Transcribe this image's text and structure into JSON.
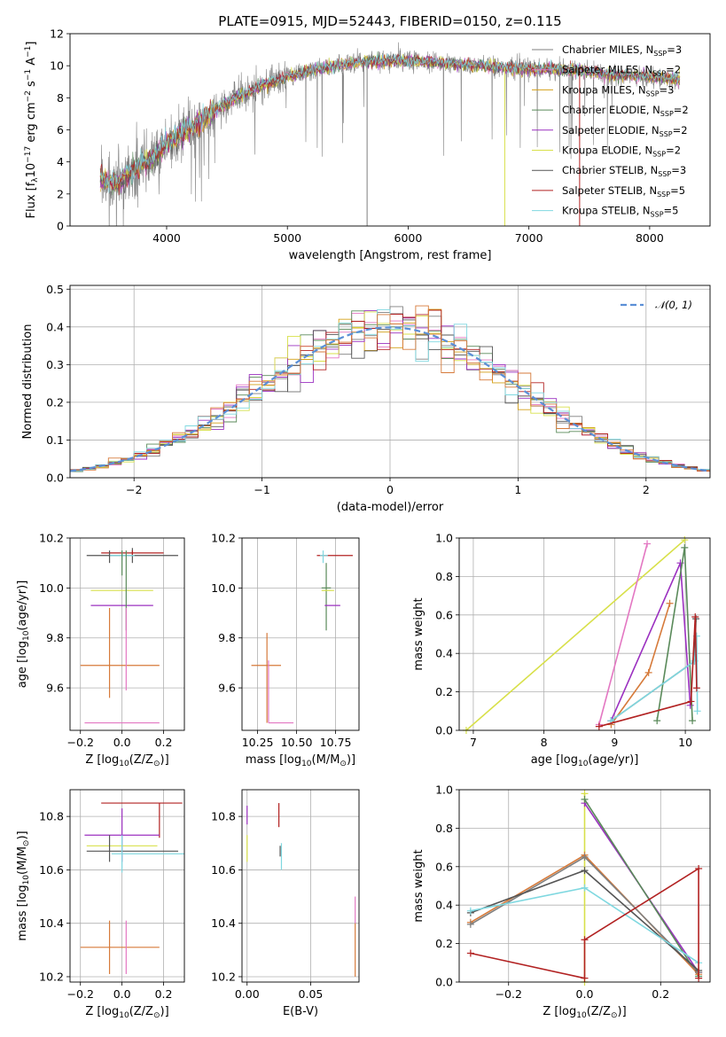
{
  "figure": {
    "title": "PLATE=0915, MJD=52443, FIBERID=0150, z=0.115"
  },
  "colors": {
    "data_spectrum": "#7f7f7f",
    "gaussian": "#5b8fd6",
    "grid": "#b0b0b0",
    "series": [
      "#7f7f7f",
      "#e377c2",
      "#d4a017",
      "#5a8a5a",
      "#9b30c0",
      "#d8e04a",
      "#555555",
      "#b22222",
      "#7fd8e0"
    ]
  },
  "legend_spectrum": [
    {
      "label": "Chabrier MILES, N$_{SSP}$=3",
      "text": "Chabrier MILES, N",
      "sub": "SSP",
      "suffix": "=3",
      "color": "#7f7f7f"
    },
    {
      "label": "Salpeter MILES",
      "text": "Salpeter MILES, N",
      "sub": "SSP",
      "suffix": "=2",
      "color": "#e377c2"
    },
    {
      "label": "Kroupa MILES",
      "text": "Kroupa MILES, N",
      "sub": "SSP",
      "suffix": "=3",
      "color": "#d4a017"
    },
    {
      "label": "Chabrier ELODIE",
      "text": "Chabrier ELODIE, N",
      "sub": "SSP",
      "suffix": "=2",
      "color": "#5a8a5a"
    },
    {
      "label": "Salpeter ELODIE",
      "text": "Salpeter ELODIE, N",
      "sub": "SSP",
      "suffix": "=2",
      "color": "#9b30c0"
    },
    {
      "label": "Kroupa ELODIE",
      "text": "Kroupa ELODIE, N",
      "sub": "SSP",
      "suffix": "=2",
      "color": "#d8e04a"
    },
    {
      "label": "Chabrier STELIB",
      "text": "Chabrier STELIB, N",
      "sub": "SSP",
      "suffix": "=3",
      "color": "#555555"
    },
    {
      "label": "Salpeter STELIB",
      "text": "Salpeter STELIB, N",
      "sub": "SSP",
      "suffix": "=5",
      "color": "#b22222"
    },
    {
      "label": "Kroupa STELIB",
      "text": "Kroupa STELIB, N",
      "sub": "SSP",
      "suffix": "=5",
      "color": "#7fd8e0"
    }
  ],
  "chart_data": [
    {
      "id": "spectrum",
      "type": "line",
      "xlabel": "wavelength [Angstrom, rest frame]",
      "ylabel_parts": [
        "Flux [f",
        "λ",
        "10",
        "−17",
        " erg cm",
        "−2",
        " s",
        "−1",
        " A",
        "−1",
        "]"
      ],
      "xlim": [
        3200,
        8500
      ],
      "ylim": [
        0,
        12
      ],
      "xticks": [
        4000,
        5000,
        6000,
        7000,
        8000
      ],
      "yticks": [
        0,
        2,
        4,
        6,
        8,
        10,
        12
      ],
      "continuum": [
        [
          3450,
          3.0
        ],
        [
          3600,
          2.6
        ],
        [
          3750,
          3.6
        ],
        [
          3900,
          4.3
        ],
        [
          4000,
          5.2
        ],
        [
          4200,
          6.1
        ],
        [
          4400,
          7.2
        ],
        [
          4600,
          8.1
        ],
        [
          4800,
          8.8
        ],
        [
          5000,
          9.3
        ],
        [
          5200,
          9.7
        ],
        [
          5400,
          10.0
        ],
        [
          5600,
          10.2
        ],
        [
          5800,
          10.3
        ],
        [
          6000,
          10.3
        ],
        [
          6200,
          10.2
        ],
        [
          6400,
          10.1
        ],
        [
          6600,
          10.0
        ],
        [
          6800,
          9.9
        ],
        [
          7000,
          9.8
        ],
        [
          7200,
          9.8
        ],
        [
          7400,
          9.7
        ],
        [
          7600,
          9.5
        ],
        [
          7800,
          9.4
        ],
        [
          8000,
          9.3
        ],
        [
          8250,
          9.1
        ]
      ],
      "spikes": [
        {
          "x": 5660,
          "y_from": 10.2,
          "y_to": 0.0,
          "color": "#7f7f7f"
        },
        {
          "x": 6800,
          "y_from": 9.9,
          "y_to": 0.0,
          "color": "#d8e04a"
        },
        {
          "x": 7420,
          "y_from": 9.7,
          "y_to": 0.0,
          "color": "#b22222"
        }
      ]
    },
    {
      "id": "residual_histogram",
      "type": "area",
      "xlabel": "(data-model)/error",
      "ylabel": "Normed distribution",
      "xlim": [
        -2.5,
        2.5
      ],
      "ylim": [
        0,
        0.51
      ],
      "xticks": [
        -2,
        -1,
        0,
        1,
        2
      ],
      "yticks": [
        0.0,
        0.1,
        0.2,
        0.3,
        0.4,
        0.5
      ],
      "bin_width": 0.1,
      "legend": "𝒩(0, 1)",
      "gaussian": {
        "mu": 0,
        "sigma": 1
      }
    },
    {
      "id": "age_vs_Z",
      "type": "scatter",
      "xlabel_parts": [
        "Z [log",
        "10",
        "(Z/Z",
        "⊙",
        ")]"
      ],
      "ylabel_parts": [
        "age  [log",
        "10",
        "(age/yr)]"
      ],
      "xlim": [
        -0.25,
        0.3
      ],
      "ylim": [
        9.43,
        10.2
      ],
      "xticks": [
        -0.2,
        0.0,
        0.2
      ],
      "yticks": [
        9.6,
        9.8,
        10.0,
        10.2
      ],
      "points": [
        {
          "x": 0.05,
          "y": 10.13,
          "xerr": [
            0.22,
            0.22
          ],
          "yerr": [
            0.03,
            0.03
          ],
          "color": "#555555"
        },
        {
          "x": 0.05,
          "y": 10.14,
          "xerr": [
            0.15,
            0.15
          ],
          "yerr": [
            0.01,
            0.01
          ],
          "color": "#b22222"
        },
        {
          "x": 0.0,
          "y": 10.13,
          "xerr": [
            0.06,
            0.06
          ],
          "yerr": [
            0.02,
            0.02
          ],
          "color": "#7fd8e0"
        },
        {
          "x": 0.0,
          "y": 10.1,
          "xerr": [
            0.0,
            0.0
          ],
          "yerr": [
            0.05,
            0.05
          ],
          "color": "#5a8a5a"
        },
        {
          "x": -0.06,
          "y": 10.13,
          "xerr": [
            0.0,
            0.0
          ],
          "yerr": [
            0.03,
            0.02
          ],
          "color": "#555555"
        },
        {
          "x": 0.0,
          "y": 9.99,
          "xerr": [
            0.15,
            0.15
          ],
          "yerr": [
            0.0,
            0.0
          ],
          "color": "#d8e04a"
        },
        {
          "x": 0.0,
          "y": 9.93,
          "xerr": [
            0.15,
            0.15
          ],
          "yerr": [
            0.0,
            0.0
          ],
          "color": "#9b30c0"
        },
        {
          "x": 0.02,
          "y": 9.99,
          "xerr": [
            0.0,
            0.0
          ],
          "yerr": [
            0.16,
            0.16
          ],
          "color": "#5a8a5a"
        },
        {
          "x": -0.06,
          "y": 9.69,
          "xerr": [
            0.14,
            0.24
          ],
          "yerr": [
            0.13,
            0.23
          ],
          "color": "#d67a3a"
        },
        {
          "x": 0.02,
          "y": 9.69,
          "xerr": [
            0.0,
            0.0
          ],
          "yerr": [
            0.1,
            0.23
          ],
          "color": "#e377c2"
        },
        {
          "x": 0.02,
          "y": 9.46,
          "xerr": [
            0.2,
            0.16
          ],
          "yerr": [
            0.0,
            0.0
          ],
          "color": "#e377c2"
        }
      ]
    },
    {
      "id": "age_vs_mass",
      "type": "scatter",
      "xlabel_parts": [
        "mass [log",
        "10",
        "(M/M",
        "⊙",
        ")]"
      ],
      "xlim": [
        10.15,
        10.9
      ],
      "ylim": [
        9.43,
        10.2
      ],
      "xticks": [
        10.25,
        10.5,
        10.75
      ],
      "yticks": [
        9.6,
        9.8,
        10.0,
        10.2
      ],
      "points": [
        {
          "x": 10.73,
          "y": 10.13,
          "xerr": [
            0.1,
            0.13
          ],
          "yerr": [
            0.0,
            0.0
          ],
          "color": "#b22222"
        },
        {
          "x": 10.67,
          "y": 10.13,
          "xerr": [
            0.02,
            0.03
          ],
          "yerr": [
            0.03,
            0.02
          ],
          "color": "#7fd8e0"
        },
        {
          "x": 10.69,
          "y": 10.0,
          "xerr": [
            0.03,
            0.03
          ],
          "yerr": [
            0.17,
            0.1
          ],
          "color": "#5a8a5a"
        },
        {
          "x": 10.69,
          "y": 9.99,
          "xerr": [
            0.03,
            0.05
          ],
          "yerr": [
            0.0,
            0.0
          ],
          "color": "#d8e04a"
        },
        {
          "x": 10.73,
          "y": 9.93,
          "xerr": [
            0.05,
            0.05
          ],
          "yerr": [
            0.0,
            0.0
          ],
          "color": "#9b30c0"
        },
        {
          "x": 10.31,
          "y": 9.69,
          "xerr": [
            0.1,
            0.09
          ],
          "yerr": [
            0.23,
            0.13
          ],
          "color": "#d67a3a"
        },
        {
          "x": 10.32,
          "y": 9.46,
          "xerr": [
            0.0,
            0.16
          ],
          "yerr": [
            0.0,
            0.25
          ],
          "color": "#e377c2"
        }
      ]
    },
    {
      "id": "mass_weight_vs_age",
      "type": "line",
      "xlabel_parts": [
        "age  [log",
        "10",
        "(age/yr)]"
      ],
      "ylabel": "mass weight",
      "xlim": [
        6.8,
        10.35
      ],
      "ylim": [
        0,
        1.0
      ],
      "xticks": [
        7,
        8,
        9,
        10
      ],
      "yticks": [
        0.0,
        0.2,
        0.4,
        0.6,
        0.8,
        1.0
      ],
      "series": [
        {
          "color": "#d8e04a",
          "points": [
            [
              6.9,
              0.0
            ],
            [
              9.99,
              0.99
            ]
          ]
        },
        {
          "color": "#e377c2",
          "points": [
            [
              8.78,
              0.03
            ],
            [
              9.46,
              0.97
            ]
          ]
        },
        {
          "color": "#d67a3a",
          "points": [
            [
              8.95,
              0.03
            ],
            [
              9.48,
              0.3
            ],
            [
              9.78,
              0.66
            ]
          ]
        },
        {
          "color": "#9b30c0",
          "points": [
            [
              8.95,
              0.05
            ],
            [
              9.93,
              0.87
            ],
            [
              10.07,
              0.13
            ]
          ]
        },
        {
          "color": "#5a8a5a",
          "points": [
            [
              9.6,
              0.05
            ],
            [
              9.99,
              0.95
            ],
            [
              10.1,
              0.05
            ]
          ]
        },
        {
          "color": "#555555",
          "points": [
            [
              8.95,
              0.05
            ],
            [
              10.13,
              0.36
            ],
            [
              10.15,
              0.58
            ]
          ]
        },
        {
          "color": "#7fd8e0",
          "points": [
            [
              8.95,
              0.05
            ],
            [
              10.13,
              0.36
            ],
            [
              10.16,
              0.49
            ],
            [
              10.17,
              0.1
            ]
          ]
        },
        {
          "color": "#b22222",
          "points": [
            [
              8.78,
              0.02
            ],
            [
              10.08,
              0.15
            ],
            [
              10.14,
              0.59
            ],
            [
              10.16,
              0.22
            ]
          ]
        }
      ]
    },
    {
      "id": "mass_vs_Z",
      "type": "scatter",
      "xlabel_parts": [
        "Z [log",
        "10",
        "(Z/Z",
        "⊙",
        ")]"
      ],
      "ylabel_parts": [
        "mass [log",
        "10",
        "(M/M",
        "⊙",
        ")]"
      ],
      "xlim": [
        -0.25,
        0.3
      ],
      "ylim": [
        10.18,
        10.9
      ],
      "xticks": [
        -0.2,
        0.0,
        0.2
      ],
      "yticks": [
        10.2,
        10.4,
        10.6,
        10.8
      ],
      "points": [
        {
          "x": 0.05,
          "y": 10.85,
          "xerr": [
            0.15,
            0.24
          ],
          "yerr": [
            0.0,
            0.0
          ],
          "color": "#b22222"
        },
        {
          "x": 0.18,
          "y": 10.82,
          "xerr": [
            0.0,
            0.0
          ],
          "yerr": [
            0.1,
            0.03
          ],
          "color": "#b22222"
        },
        {
          "x": 0.0,
          "y": 10.73,
          "xerr": [
            0.18,
            0.18
          ],
          "yerr": [
            0.1,
            0.1
          ],
          "color": "#9b30c0"
        },
        {
          "x": 0.0,
          "y": 10.69,
          "xerr": [
            0.17,
            0.17
          ],
          "yerr": [
            0.0,
            0.0
          ],
          "color": "#d8e04a"
        },
        {
          "x": 0.05,
          "y": 10.67,
          "xerr": [
            0.22,
            0.22
          ],
          "yerr": [
            0.0,
            0.0
          ],
          "color": "#555555"
        },
        {
          "x": 0.0,
          "y": 10.66,
          "xerr": [
            0.05,
            0.3
          ],
          "yerr": [
            0.07,
            0.07
          ],
          "color": "#7fd8e0"
        },
        {
          "x": -0.06,
          "y": 10.68,
          "xerr": [
            0.0,
            0.0
          ],
          "yerr": [
            0.05,
            0.05
          ],
          "color": "#555555"
        },
        {
          "x": -0.06,
          "y": 10.31,
          "xerr": [
            0.14,
            0.24
          ],
          "yerr": [
            0.1,
            0.1
          ],
          "color": "#d67a3a"
        },
        {
          "x": 0.02,
          "y": 10.31,
          "xerr": [
            0.0,
            0.0
          ],
          "yerr": [
            0.1,
            0.1
          ],
          "color": "#e377c2"
        }
      ]
    },
    {
      "id": "mass_vs_EBV",
      "type": "scatter",
      "xlabel": "E(B-V)",
      "xlim": [
        -0.004,
        0.088
      ],
      "ylim": [
        10.18,
        10.9
      ],
      "xticks": [
        0.0,
        0.05
      ],
      "yticks": [
        10.2,
        10.4,
        10.6,
        10.8
      ],
      "points": [
        {
          "x": 0.0,
          "y": 10.8,
          "xerr": [
            0.0,
            0.0
          ],
          "yerr": [
            0.03,
            0.04
          ],
          "color": "#9b30c0"
        },
        {
          "x": 0.0,
          "y": 10.68,
          "xerr": [
            0.0,
            0.0
          ],
          "yerr": [
            0.05,
            0.05
          ],
          "color": "#d8e04a"
        },
        {
          "x": 0.025,
          "y": 10.8,
          "xerr": [
            0.0,
            0.0
          ],
          "yerr": [
            0.04,
            0.05
          ],
          "color": "#b22222"
        },
        {
          "x": 0.027,
          "y": 10.66,
          "xerr": [
            0.0,
            0.0
          ],
          "yerr": [
            0.06,
            0.04
          ],
          "color": "#7fd8e0"
        },
        {
          "x": 0.026,
          "y": 10.67,
          "xerr": [
            0.0,
            0.0
          ],
          "yerr": [
            0.02,
            0.02
          ],
          "color": "#555555"
        },
        {
          "x": 0.085,
          "y": 10.42,
          "xerr": [
            0.0,
            0.0
          ],
          "yerr": [
            0.02,
            0.08
          ],
          "color": "#e377c2"
        },
        {
          "x": 0.085,
          "y": 10.3,
          "xerr": [
            0.0,
            0.0
          ],
          "yerr": [
            0.1,
            0.1
          ],
          "color": "#d67a3a"
        }
      ]
    },
    {
      "id": "mass_weight_vs_Z",
      "type": "line",
      "xlabel_parts": [
        "Z [log",
        "10",
        "(Z/Z",
        "⊙",
        ")]"
      ],
      "ylabel": "mass weight",
      "xlim": [
        -0.33,
        0.33
      ],
      "ylim": [
        0,
        1.0
      ],
      "xticks": [
        -0.2,
        0.0,
        0.2
      ],
      "yticks": [
        0.0,
        0.2,
        0.4,
        0.6,
        0.8,
        1.0
      ],
      "series": [
        {
          "color": "#d8e04a",
          "points": [
            [
              0.0,
              0.0
            ],
            [
              0.0,
              0.98
            ]
          ]
        },
        {
          "color": "#9b30c0",
          "points": [
            [
              0.0,
              0.93
            ],
            [
              0.3,
              0.05
            ]
          ]
        },
        {
          "color": "#5a8a5a",
          "points": [
            [
              0.0,
              0.95
            ],
            [
              0.3,
              0.03
            ]
          ]
        },
        {
          "color": "#d67a3a",
          "points": [
            [
              -0.3,
              0.31
            ],
            [
              0.0,
              0.66
            ],
            [
              0.3,
              0.04
            ]
          ]
        },
        {
          "color": "#7f7f7f",
          "points": [
            [
              -0.3,
              0.3
            ],
            [
              0.0,
              0.65
            ],
            [
              0.3,
              0.05
            ]
          ]
        },
        {
          "color": "#555555",
          "points": [
            [
              -0.3,
              0.36
            ],
            [
              0.0,
              0.58
            ],
            [
              0.3,
              0.06
            ]
          ]
        },
        {
          "color": "#7fd8e0",
          "points": [
            [
              -0.3,
              0.37
            ],
            [
              0.0,
              0.49
            ],
            [
              0.3,
              0.1
            ]
          ]
        },
        {
          "color": "#b22222",
          "points": [
            [
              -0.3,
              0.15
            ],
            [
              0.0,
              0.02
            ],
            [
              0.0,
              0.22
            ],
            [
              0.3,
              0.59
            ],
            [
              0.3,
              0.02
            ]
          ]
        }
      ]
    }
  ]
}
